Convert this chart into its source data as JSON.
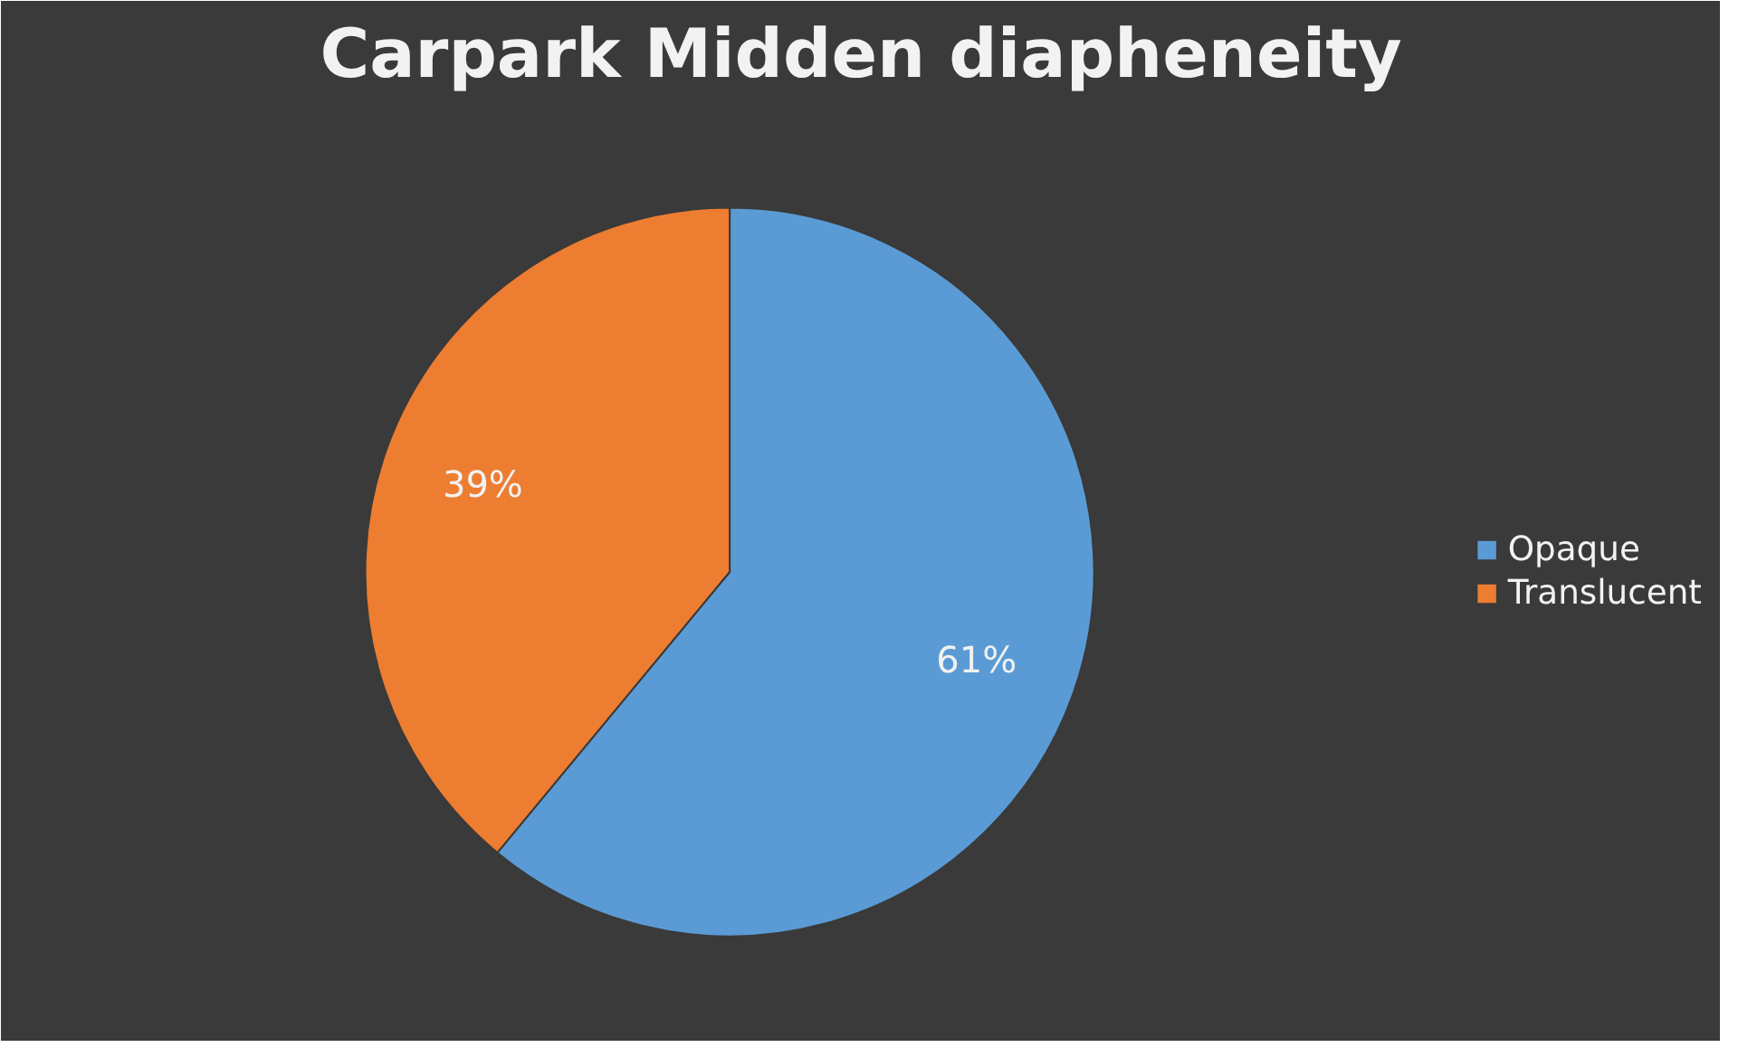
{
  "chart_data": {
    "type": "pie",
    "title": "Carpark Midden diapheneity",
    "categories": [
      "Opaque",
      "Translucent"
    ],
    "values": [
      61,
      39
    ],
    "colors": [
      "#5b9bd5",
      "#ed7d31"
    ],
    "value_labels": [
      "61%",
      "39%"
    ],
    "legend": "right"
  }
}
